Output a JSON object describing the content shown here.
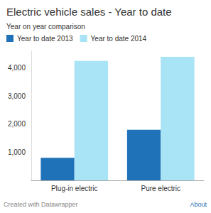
{
  "chart_data": {
    "type": "bar",
    "title": "Electric vehicle sales - Year to date",
    "subtitle": "Year on year comparison",
    "categories": [
      "Plug-in electric",
      "Pure electric"
    ],
    "series": [
      {
        "name": "Year to date 2013",
        "color": "#1f72b8",
        "values": [
          800,
          1800
        ]
      },
      {
        "name": "Year to date 2014",
        "color": "#a8e3f6",
        "values": [
          4250,
          4400
        ]
      }
    ],
    "ylim": [
      0,
      4600
    ],
    "yticks": [
      {
        "value": 1000,
        "label": "1,000"
      },
      {
        "value": 2000,
        "label": "2,000"
      },
      {
        "value": 3000,
        "label": "3,000"
      },
      {
        "value": 4000,
        "label": "4,000"
      }
    ],
    "grid": false,
    "legend": "top-left",
    "annotations": [
      "Created with Datawrapper",
      "About"
    ]
  }
}
